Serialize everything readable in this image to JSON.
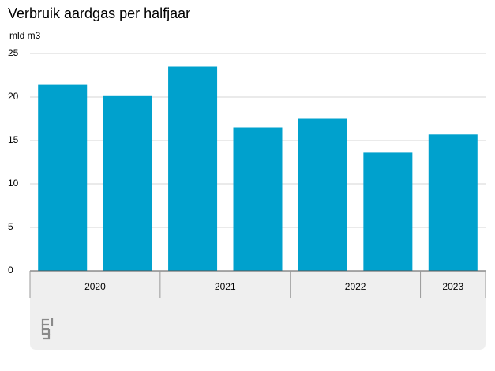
{
  "chart_data": {
    "type": "bar",
    "title": "Verbruik aardgas per halfjaar",
    "y_label": "mld m3",
    "categories": [
      null,
      null,
      null,
      null,
      null,
      null,
      null
    ],
    "groups": [
      {
        "label": "2020",
        "count": 2
      },
      {
        "label": "2021",
        "count": 2
      },
      {
        "label": "2022",
        "count": 2
      },
      {
        "label": "2023",
        "count": 1
      }
    ],
    "values": [
      21.4,
      20.2,
      23.5,
      16.5,
      17.5,
      13.6,
      15.7
    ],
    "color": "#00a1cd",
    "ylim": [
      0,
      25
    ],
    "yticks": [
      0,
      5,
      10,
      15,
      20,
      25
    ],
    "grid": true
  }
}
